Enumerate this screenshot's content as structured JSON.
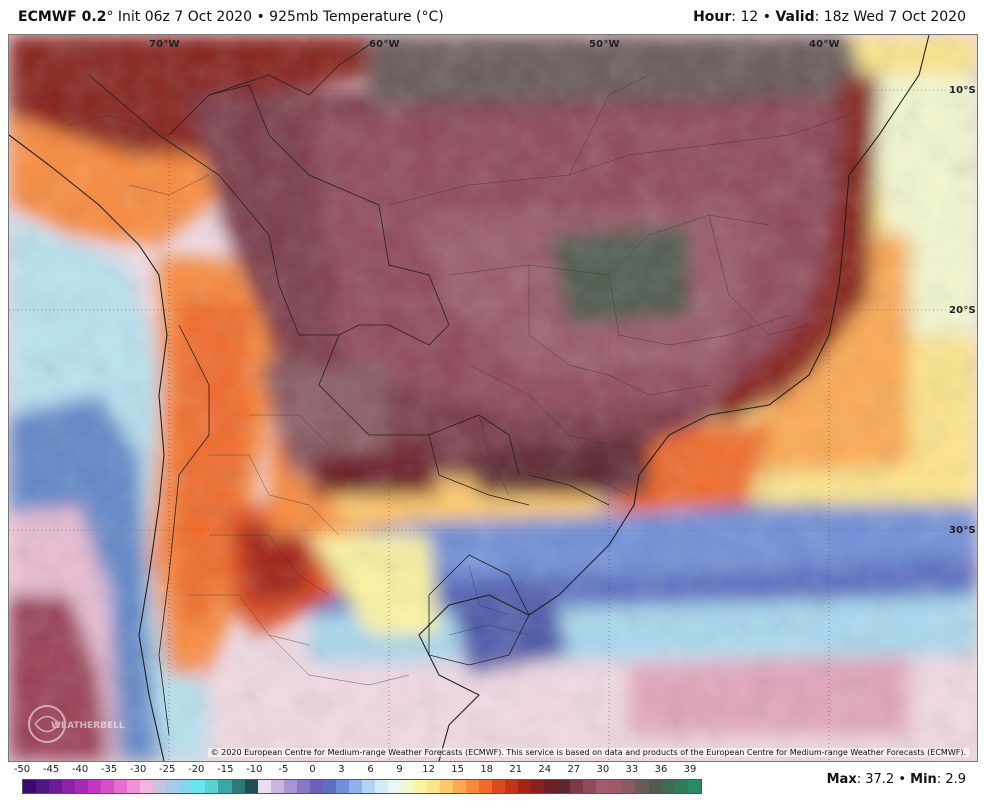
{
  "header": {
    "model": "ECMWF 0.2",
    "degree_symbol": "°",
    "init": "Init 06z 7 Oct 2020",
    "separator": "•",
    "product": "925mb Temperature (°C)",
    "hour_label": "Hour",
    "hour_value": ": 12",
    "valid_label": "Valid",
    "valid_value": ": 18z Wed 7 Oct 2020"
  },
  "map": {
    "longitudes": [
      "70°W",
      "60°W",
      "50°W",
      "40°W"
    ],
    "latitudes": [
      "10°S",
      "20°S",
      "30°S"
    ],
    "copyright": "© 2020 European Centre for Medium-range Weather Forecasts (ECMWF). This service is based on data and products of the European Centre for Medium-range Weather Forecasts (ECMWF).",
    "watermark_text": "WEATHERBELL"
  },
  "legend": {
    "ticks": [
      "-50",
      "-45",
      "-40",
      "-35",
      "-30",
      "-25",
      "-20",
      "-15",
      "-10",
      "-5",
      "0",
      "3",
      "6",
      "9",
      "12",
      "15",
      "18",
      "21",
      "24",
      "27",
      "30",
      "33",
      "36",
      "39"
    ],
    "colors": [
      "#3b0a6e",
      "#4f1580",
      "#6a1b95",
      "#8a22a8",
      "#a52bb5",
      "#c238c0",
      "#d64fc6",
      "#e66ecd",
      "#ef92d6",
      "#f3b5df",
      "#c9c3e3",
      "#a8c8ec",
      "#86d6ef",
      "#6ae4ee",
      "#5ad2d0",
      "#3aa6a6",
      "#2c7a7a",
      "#1f4f55",
      "#e6e0f0",
      "#c8b6e0",
      "#a894d2",
      "#8a78c4",
      "#6c5fb6",
      "#5a6ec4",
      "#6f8fd8",
      "#8fb3e8",
      "#b3d3f2",
      "#d4ecfa",
      "#e9f6f2",
      "#f3f7cf",
      "#fbf3a0",
      "#fde58a",
      "#fdc86b",
      "#fca952",
      "#f98a3c",
      "#f06a2a",
      "#dd4a1e",
      "#c23418",
      "#a32416",
      "#86201d",
      "#6c1f26",
      "#5c2730",
      "#7a3a48",
      "#8f4a5c",
      "#a35a6e",
      "#9a5a6a",
      "#8a5a64",
      "#6b5a5a",
      "#4f5a50",
      "#3f6a55",
      "#2f7a5a",
      "#2a8a65"
    ],
    "max_label": "Max",
    "max_value": ": 37.2",
    "min_label": "Min",
    "min_value": ": 2.9",
    "bullet": "•"
  }
}
